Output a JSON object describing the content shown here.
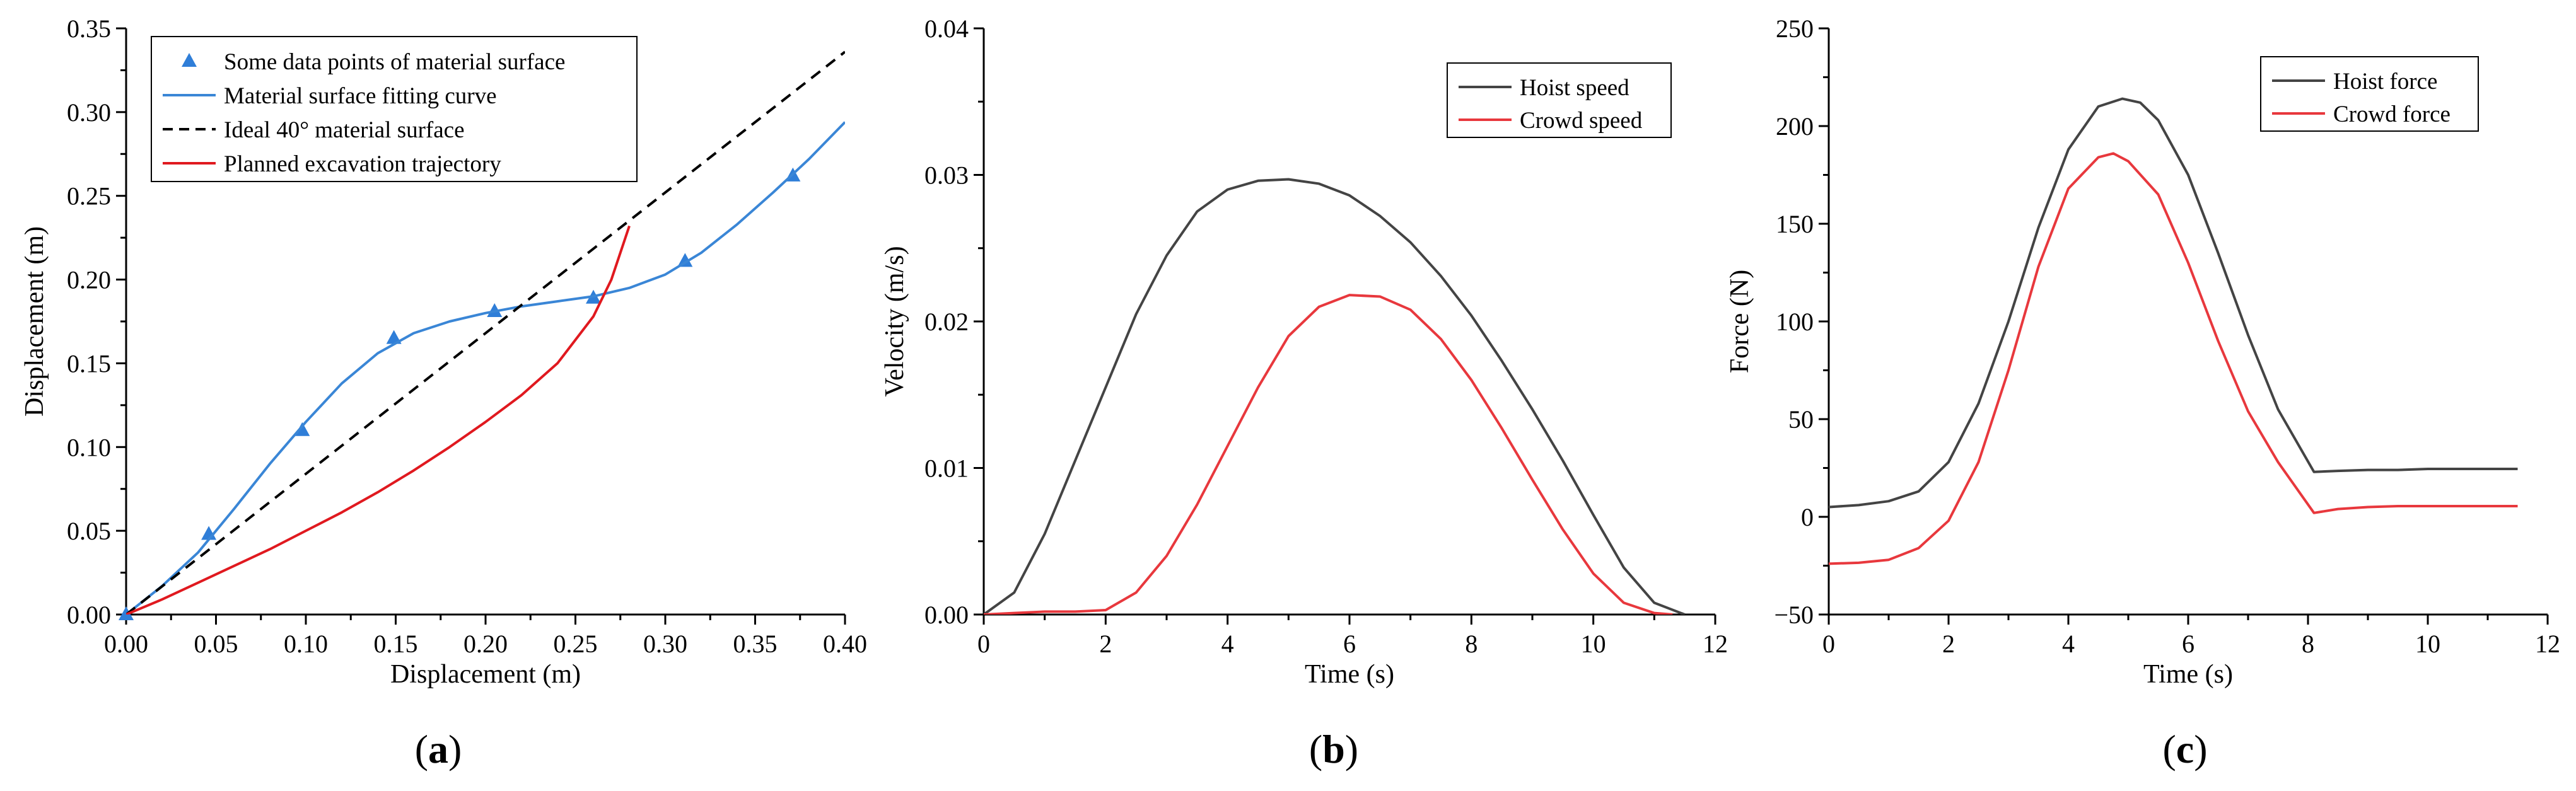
{
  "chart_data": [
    {
      "type": "line",
      "panel": "a",
      "caption": "(a)",
      "caption_parts": [
        "(",
        "a",
        ")"
      ],
      "xlabel": "Displacement (m)",
      "ylabel": "Displacement (m)",
      "xlim": [
        0,
        0.4
      ],
      "ylim": [
        0,
        0.35
      ],
      "xticks": [
        0,
        0.05,
        0.1,
        0.15,
        0.2,
        0.25,
        0.3,
        0.35,
        0.4
      ],
      "xtick_labels": [
        "0.00",
        "0.05",
        "0.10",
        "0.15",
        "0.20",
        "0.25",
        "0.30",
        "0.35",
        "0.40"
      ],
      "yticks": [
        0,
        0.05,
        0.1,
        0.15,
        0.2,
        0.25,
        0.3,
        0.35
      ],
      "ytick_labels": [
        "0.00",
        "0.05",
        "0.10",
        "0.15",
        "0.20",
        "0.25",
        "0.30",
        "0.35"
      ],
      "legend_position": "top-left",
      "series": [
        {
          "name": "Some data points of material surface",
          "kind": "scatter",
          "marker": "triangle",
          "color": "#2f7ed8",
          "x": [
            0.0,
            0.046,
            0.098,
            0.149,
            0.205,
            0.26,
            0.311,
            0.371
          ],
          "y": [
            0.0,
            0.048,
            0.11,
            0.165,
            0.181,
            0.189,
            0.211,
            0.262
          ]
        },
        {
          "name": "Material surface fitting curve",
          "kind": "line",
          "color": "#3a86d6",
          "dash": "solid",
          "x": [
            0.0,
            0.02,
            0.04,
            0.06,
            0.08,
            0.1,
            0.12,
            0.14,
            0.16,
            0.18,
            0.2,
            0.22,
            0.24,
            0.26,
            0.28,
            0.3,
            0.32,
            0.34,
            0.36,
            0.38,
            0.4
          ],
          "y": [
            0.0,
            0.017,
            0.037,
            0.063,
            0.09,
            0.115,
            0.138,
            0.156,
            0.168,
            0.175,
            0.18,
            0.184,
            0.187,
            0.19,
            0.195,
            0.203,
            0.216,
            0.233,
            0.252,
            0.272,
            0.294
          ]
        },
        {
          "name": "Ideal 40° material surface",
          "kind": "line",
          "color": "#000000",
          "dash": "dashed",
          "x": [
            0.0,
            0.4
          ],
          "y": [
            0.0,
            0.336
          ]
        },
        {
          "name": "Planned excavation trajectory",
          "kind": "line",
          "color": "#e0191f",
          "dash": "solid",
          "x": [
            0.0,
            0.02,
            0.04,
            0.06,
            0.08,
            0.1,
            0.12,
            0.14,
            0.16,
            0.18,
            0.2,
            0.22,
            0.24,
            0.26,
            0.27,
            0.28
          ],
          "y": [
            0.0,
            0.009,
            0.019,
            0.029,
            0.039,
            0.05,
            0.061,
            0.073,
            0.086,
            0.1,
            0.115,
            0.131,
            0.15,
            0.178,
            0.2,
            0.232
          ]
        }
      ]
    },
    {
      "type": "line",
      "panel": "b",
      "caption": "(b)",
      "caption_parts": [
        "(",
        "b",
        ")"
      ],
      "xlabel": "Time (s)",
      "ylabel": "Velocity (m/s)",
      "xlim": [
        0,
        12
      ],
      "ylim": [
        0,
        0.04
      ],
      "xticks": [
        0,
        2,
        4,
        6,
        8,
        10,
        12
      ],
      "xtick_labels": [
        "0",
        "2",
        "4",
        "6",
        "8",
        "10",
        "12"
      ],
      "yticks": [
        0,
        0.01,
        0.02,
        0.03,
        0.04
      ],
      "ytick_labels": [
        "0.00",
        "0.01",
        "0.02",
        "0.03",
        "0.04"
      ],
      "legend_position": "top-right",
      "series": [
        {
          "name": "Hoist speed",
          "color": "#444444",
          "x": [
            0,
            0.5,
            1,
            1.5,
            2,
            2.5,
            3,
            3.5,
            4,
            4.5,
            5,
            5.5,
            6,
            6.5,
            7,
            7.5,
            8,
            8.5,
            9,
            9.5,
            10,
            10.5,
            11,
            11.5
          ],
          "y": [
            0.0,
            0.0015,
            0.0055,
            0.0105,
            0.0155,
            0.0205,
            0.0245,
            0.0275,
            0.029,
            0.0296,
            0.0297,
            0.0294,
            0.0286,
            0.0272,
            0.0254,
            0.0231,
            0.0204,
            0.0173,
            0.014,
            0.0105,
            0.0068,
            0.0032,
            0.0008,
            0.0
          ]
        },
        {
          "name": "Crowd speed",
          "color": "#e8383d",
          "x": [
            0,
            0.5,
            1,
            1.5,
            2,
            2.5,
            3,
            3.5,
            4,
            4.5,
            5,
            5.5,
            6,
            6.5,
            7,
            7.5,
            8,
            8.5,
            9,
            9.5,
            10,
            10.5,
            11,
            11.3
          ],
          "y": [
            0.0,
            0.0001,
            0.0002,
            0.0002,
            0.0003,
            0.0015,
            0.004,
            0.0075,
            0.0115,
            0.0155,
            0.019,
            0.021,
            0.0218,
            0.0217,
            0.0208,
            0.0188,
            0.016,
            0.0127,
            0.0092,
            0.0058,
            0.0028,
            0.0008,
            0.0001,
            0.0
          ]
        }
      ]
    },
    {
      "type": "line",
      "panel": "c",
      "caption": "(c)",
      "caption_parts": [
        "(",
        "c",
        ")"
      ],
      "xlabel": "Time (s)",
      "ylabel": "Force (N)",
      "xlim": [
        0,
        12
      ],
      "ylim": [
        -50,
        250
      ],
      "xticks": [
        0,
        2,
        4,
        6,
        8,
        10,
        12
      ],
      "xtick_labels": [
        "0",
        "2",
        "4",
        "6",
        "8",
        "10",
        "12"
      ],
      "yticks": [
        -50,
        0,
        50,
        100,
        150,
        200,
        250
      ],
      "ytick_labels": [
        "−50",
        "0",
        "50",
        "100",
        "150",
        "200",
        "250"
      ],
      "legend_position": "top-right",
      "series": [
        {
          "name": "Hoist force",
          "color": "#444444",
          "x": [
            0,
            0.5,
            1,
            1.5,
            2,
            2.5,
            3,
            3.5,
            4,
            4.5,
            4.9,
            5.2,
            5.5,
            6,
            6.5,
            7,
            7.5,
            8.1,
            8.5,
            9,
            9.5,
            10,
            10.5,
            11,
            11.5
          ],
          "y": [
            5,
            6,
            8,
            13,
            28,
            58,
            100,
            148,
            188,
            210,
            214,
            212,
            203,
            175,
            135,
            93,
            55,
            23,
            23.5,
            24,
            24,
            24.5,
            24.5,
            24.5,
            24.5
          ]
        },
        {
          "name": "Crowd force",
          "color": "#e8383d",
          "x": [
            0,
            0.5,
            1,
            1.5,
            2,
            2.5,
            3,
            3.5,
            4,
            4.5,
            4.75,
            5,
            5.5,
            6,
            6.5,
            7,
            7.5,
            8.1,
            8.5,
            9,
            9.5,
            10,
            10.5,
            11,
            11.5
          ],
          "y": [
            -24,
            -23.5,
            -22,
            -16,
            -2,
            28,
            75,
            128,
            168,
            184,
            186,
            182,
            165,
            130,
            90,
            54,
            28,
            2,
            4,
            5,
            5.5,
            5.5,
            5.5,
            5.5,
            5.5
          ]
        }
      ]
    }
  ]
}
